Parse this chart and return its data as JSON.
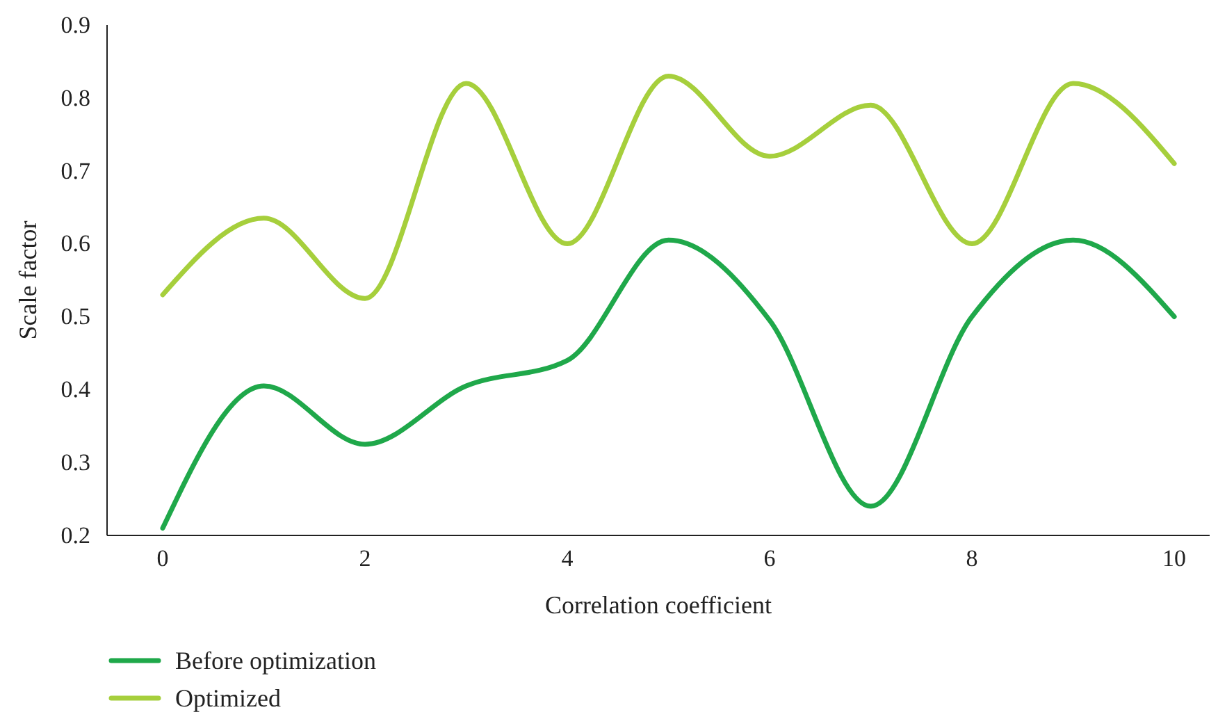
{
  "chart_data": {
    "type": "line",
    "xlabel": "Correlation coefficient",
    "ylabel": "Scale factor",
    "x": [
      0,
      1,
      2,
      3,
      4,
      5,
      6,
      7,
      8,
      9,
      10
    ],
    "series": [
      {
        "name": "Before optimization",
        "color": "#1fa84a",
        "values": [
          0.21,
          0.405,
          0.325,
          0.405,
          0.44,
          0.605,
          0.495,
          0.24,
          0.5,
          0.605,
          0.5
        ]
      },
      {
        "name": "Optimized",
        "color": "#a6cf3c",
        "values": [
          0.53,
          0.635,
          0.525,
          0.82,
          0.6,
          0.83,
          0.72,
          0.79,
          0.6,
          0.82,
          0.71
        ]
      }
    ],
    "xlim": [
      -0.55,
      10.35
    ],
    "xticks": [
      0,
      2,
      4,
      6,
      8,
      10
    ],
    "ylim": [
      0.2,
      0.9
    ],
    "yticks": [
      0.2,
      0.3,
      0.4,
      0.5,
      0.6,
      0.7,
      0.8,
      0.9
    ],
    "grid": false,
    "legend": "bottom",
    "marker": "none",
    "line_style": "solid"
  }
}
